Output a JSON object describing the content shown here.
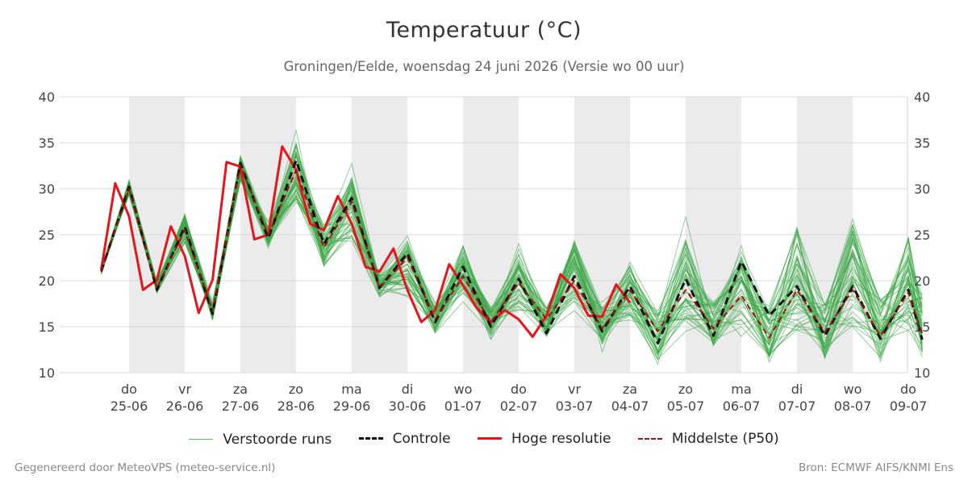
{
  "title": "Temperatuur (°C)",
  "subtitle": "Groningen/Eelde, woensdag 24 juni 2026 (Versie wo 00 uur)",
  "footer_left": "Gegenereerd door MeteoVPS (meteo-service.nl)",
  "footer_right": "Bron: ECMWF AIFS/KNMI Ens",
  "legend": [
    {
      "label": "Verstoorde runs",
      "color": "#4caf50",
      "style": "thin"
    },
    {
      "label": "Controle",
      "color": "#111111",
      "style": "dashed"
    },
    {
      "label": "Hoge resolutie",
      "color": "#e8141b",
      "style": "solid"
    },
    {
      "label": "Middelste (P50)",
      "color": "#a01010",
      "style": "dashed-thin"
    }
  ],
  "colors": {
    "members": "#3aa546",
    "control": "#111111",
    "hires": "#e8141b",
    "p50": "#a01010",
    "weekend_band": "#ebebeb",
    "grid": "#d8d8d8"
  },
  "chart_data": {
    "type": "line",
    "ylim": [
      10,
      40
    ],
    "yticks": [
      10,
      15,
      20,
      25,
      30,
      35,
      40
    ],
    "xlim": [
      0,
      15.25
    ],
    "xticks": [
      {
        "day": "do",
        "date": "25-06"
      },
      {
        "day": "vr",
        "date": "26-06"
      },
      {
        "day": "za",
        "date": "27-06"
      },
      {
        "day": "zo",
        "date": "28-06"
      },
      {
        "day": "ma",
        "date": "29-06"
      },
      {
        "day": "di",
        "date": "30-06"
      },
      {
        "day": "wo",
        "date": "01-07"
      },
      {
        "day": "do",
        "date": "02-07"
      },
      {
        "day": "vr",
        "date": "03-07"
      },
      {
        "day": "za",
        "date": "04-07"
      },
      {
        "day": "zo",
        "date": "05-07"
      },
      {
        "day": "ma",
        "date": "06-07"
      },
      {
        "day": "di",
        "date": "07-07"
      },
      {
        "day": "wo",
        "date": "08-07"
      },
      {
        "day": "do",
        "date": "09-07"
      }
    ],
    "shaded_days": [
      1,
      3,
      5,
      7,
      9,
      11,
      13
    ],
    "hires": {
      "name": "Hoge resolutie",
      "x": [
        0.5,
        0.75,
        1.0,
        1.25,
        1.5,
        1.75,
        2.0,
        2.25,
        2.5,
        2.75,
        3.0,
        3.25,
        3.5,
        3.75,
        4.0,
        4.25,
        4.5,
        4.75,
        5.0,
        5.25,
        5.5,
        5.75,
        6.0,
        6.25,
        6.5,
        6.75,
        7.0,
        7.25,
        7.5,
        7.75,
        8.0,
        8.25,
        8.5,
        8.75,
        9.0,
        9.25,
        9.5,
        9.75,
        10.0
      ],
      "y": [
        21.2,
        30.6,
        27.0,
        19.0,
        20.1,
        25.9,
        22.7,
        16.5,
        20.1,
        32.9,
        32.4,
        24.5,
        25.0,
        34.6,
        32.1,
        26.2,
        25.5,
        29.2,
        26.2,
        21.5,
        21.0,
        23.5,
        19.0,
        15.5,
        16.8,
        21.8,
        19.5,
        17.0,
        15.5,
        16.8,
        15.8,
        13.9,
        16.2,
        20.7,
        19.2,
        16.2,
        16.1,
        19.6,
        17.6
      ]
    },
    "control": {
      "name": "Controle",
      "x": [
        0.5,
        1.0,
        1.5,
        2.0,
        2.5,
        3.0,
        3.5,
        4.0,
        4.5,
        5.0,
        5.5,
        6.0,
        6.5,
        7.0,
        7.5,
        8.0,
        8.5,
        9.0,
        9.5,
        10.0,
        10.5,
        11.0,
        11.5,
        12.0,
        12.5,
        13.0,
        13.5,
        14.0,
        14.5,
        15.0,
        15.25
      ],
      "y": [
        21.0,
        30.2,
        19.0,
        25.9,
        16.4,
        32.8,
        24.6,
        33.1,
        24.0,
        29.0,
        19.2,
        23.0,
        15.5,
        21.5,
        15.0,
        20.2,
        14.3,
        20.5,
        14.5,
        19.4,
        13.2,
        20.2,
        14.0,
        22.1,
        16.2,
        19.4,
        14.0,
        19.4,
        13.7,
        19.0,
        13.6
      ]
    },
    "p50": {
      "name": "Middelste (P50)",
      "x": [
        0.5,
        1.0,
        1.5,
        2.0,
        2.5,
        3.0,
        3.5,
        4.0,
        4.5,
        5.0,
        5.5,
        6.0,
        6.5,
        7.0,
        7.5,
        8.0,
        8.5,
        9.0,
        9.5,
        10.0,
        10.5,
        11.0,
        11.5,
        12.0,
        12.5,
        13.0,
        13.5,
        14.0,
        14.5,
        15.0,
        15.25
      ],
      "y": [
        21.0,
        30.0,
        19.2,
        25.5,
        16.7,
        32.5,
        25.0,
        32.0,
        23.6,
        28.6,
        19.2,
        22.5,
        15.8,
        20.5,
        15.5,
        19.8,
        15.8,
        20.0,
        14.8,
        19.0,
        14.5,
        19.0,
        14.8,
        18.4,
        13.8,
        19.0,
        14.4,
        19.0,
        14.0,
        18.7,
        14.2
      ]
    },
    "members_envelope": {
      "name": "Verstoorde runs",
      "count": 50,
      "x": [
        0.5,
        1.0,
        1.5,
        2.0,
        2.5,
        3.0,
        3.5,
        4.0,
        4.5,
        5.0,
        5.5,
        6.0,
        6.5,
        7.0,
        7.5,
        8.0,
        8.5,
        9.0,
        9.5,
        10.0,
        10.5,
        11.0,
        11.5,
        12.0,
        12.5,
        13.0,
        13.5,
        14.0,
        14.5,
        15.0,
        15.25
      ],
      "low": [
        20.6,
        29.0,
        18.4,
        23.5,
        15.3,
        30.2,
        23.0,
        27.3,
        20.5,
        22.5,
        17.5,
        17.9,
        13.7,
        17.5,
        13.4,
        15.4,
        13.2,
        16.4,
        12.2,
        14.8,
        10.0,
        13.5,
        11.8,
        13.5,
        10.2,
        12.2,
        10.3,
        12.5,
        10.0,
        12.2,
        10.2
      ],
      "high": [
        21.5,
        31.3,
        20.2,
        27.9,
        17.9,
        34.3,
        26.5,
        36.6,
        27.2,
        32.9,
        21.5,
        25.5,
        17.9,
        25.0,
        17.8,
        24.9,
        18.0,
        25.6,
        18.0,
        23.5,
        17.6,
        27.8,
        18.9,
        24.4,
        18.6,
        28.3,
        19.1,
        30.0,
        19.4,
        27.4,
        20.0
      ]
    }
  }
}
